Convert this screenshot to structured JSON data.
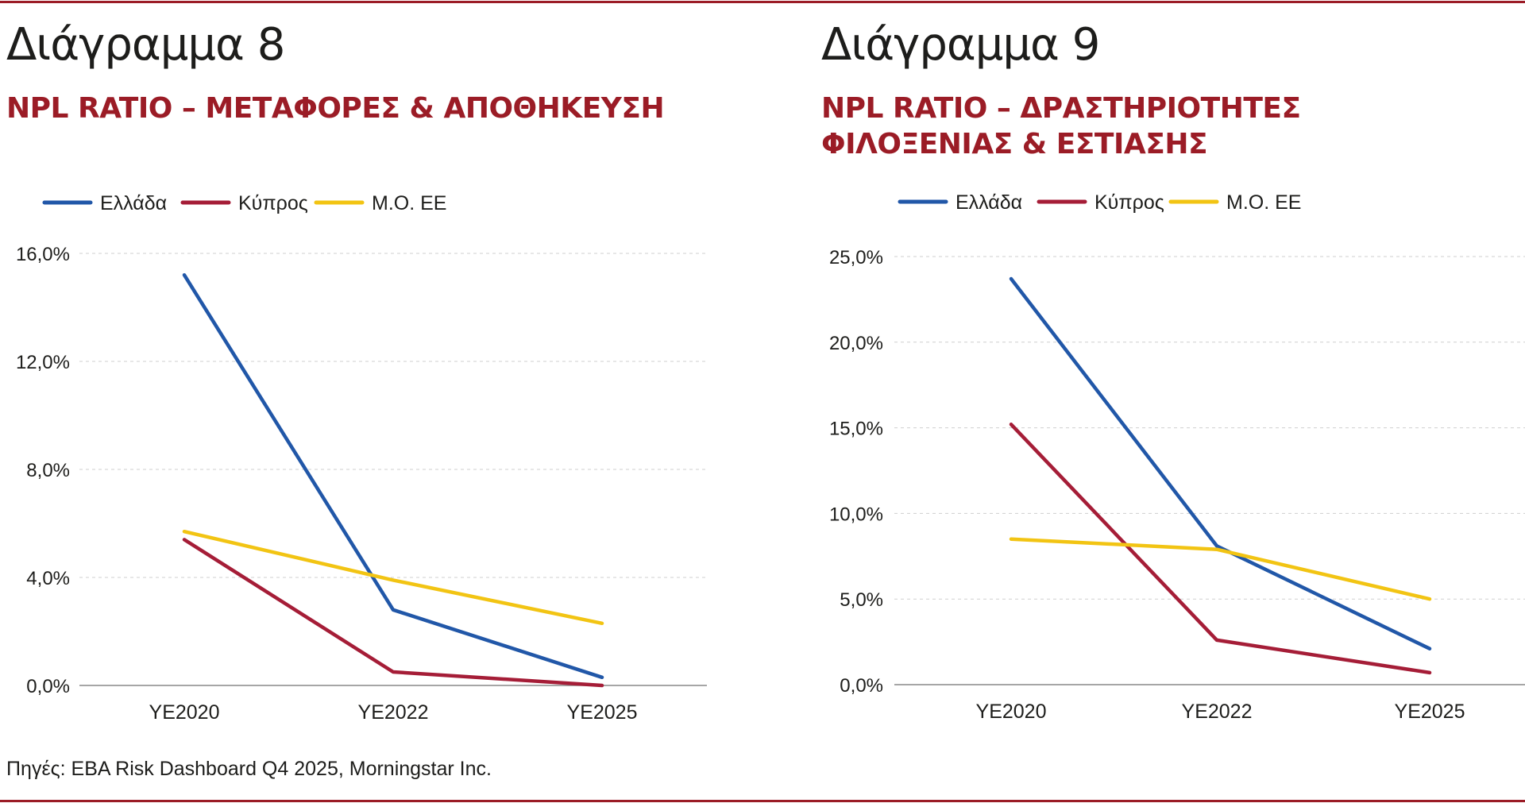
{
  "source": "Πηγές: EBA Risk Dashboard Q4 2025, Morningstar Inc.",
  "colors": {
    "accent": "#9b1c26",
    "greece": "#2157a8",
    "cyprus": "#a51d37",
    "eu": "#f2c413",
    "grid": "#cfcfcf",
    "axis": "#888888"
  },
  "charts": [
    {
      "title": "Διάγραμμα 8",
      "subtitle": "NPL RATIO – ΜΕΤΑΦΟΡΕΣ & ΑΠΟΘΗΚΕΥΣΗ"
    },
    {
      "title": "Διάγραμμα 9",
      "subtitle": "NPL RATIO – ΔΡΑΣΤΗΡΙΟΤΗΤΕΣ ΦΙΛΟΞΕΝΙΑΣ & ΕΣΤΙΑΣΗΣ"
    }
  ],
  "chart_data": [
    {
      "type": "line",
      "title": "Διάγραμμα 8",
      "subtitle": "NPL RATIO – ΜΕΤΑΦΟΡΕΣ & ΑΠΟΘΗΚΕΥΣΗ",
      "categories": [
        "YE2020",
        "YE2022",
        "YE2025"
      ],
      "series": [
        {
          "name": "Ελλάδα",
          "values": [
            15.2,
            2.8,
            0.3
          ],
          "color": "#2157a8"
        },
        {
          "name": "Κύπρος",
          "values": [
            5.4,
            0.5,
            0.0
          ],
          "color": "#a51d37"
        },
        {
          "name": "Μ.Ο. ΕΕ",
          "values": [
            5.7,
            3.9,
            2.3
          ],
          "color": "#f2c413"
        }
      ],
      "ylim": [
        0,
        16
      ],
      "yticks": [
        0,
        4,
        8,
        12,
        16
      ],
      "ytick_labels": [
        "0,0%",
        "4,0%",
        "8,0%",
        "12,0%",
        "16,0%"
      ],
      "grid": true,
      "legend": "top-left"
    },
    {
      "type": "line",
      "title": "Διάγραμμα 9",
      "subtitle": "NPL RATIO – ΔΡΑΣΤΗΡΙΟΤΗΤΕΣ ΦΙΛΟΞΕΝΙΑΣ & ΕΣΤΙΑΣΗΣ",
      "categories": [
        "YE2020",
        "YE2022",
        "YE2025"
      ],
      "series": [
        {
          "name": "Ελλάδα",
          "values": [
            23.7,
            8.1,
            2.1
          ],
          "color": "#2157a8"
        },
        {
          "name": "Κύπρος",
          "values": [
            15.2,
            2.6,
            0.7
          ],
          "color": "#a51d37"
        },
        {
          "name": "Μ.Ο. ΕΕ",
          "values": [
            8.5,
            7.9,
            5.0
          ],
          "color": "#f2c413"
        }
      ],
      "ylim": [
        0,
        25
      ],
      "yticks": [
        0,
        5,
        10,
        15,
        20,
        25
      ],
      "ytick_labels": [
        "0,0%",
        "5,0%",
        "10,0%",
        "15,0%",
        "20,0%",
        "25,0%"
      ],
      "grid": true,
      "legend": "top-left"
    }
  ]
}
